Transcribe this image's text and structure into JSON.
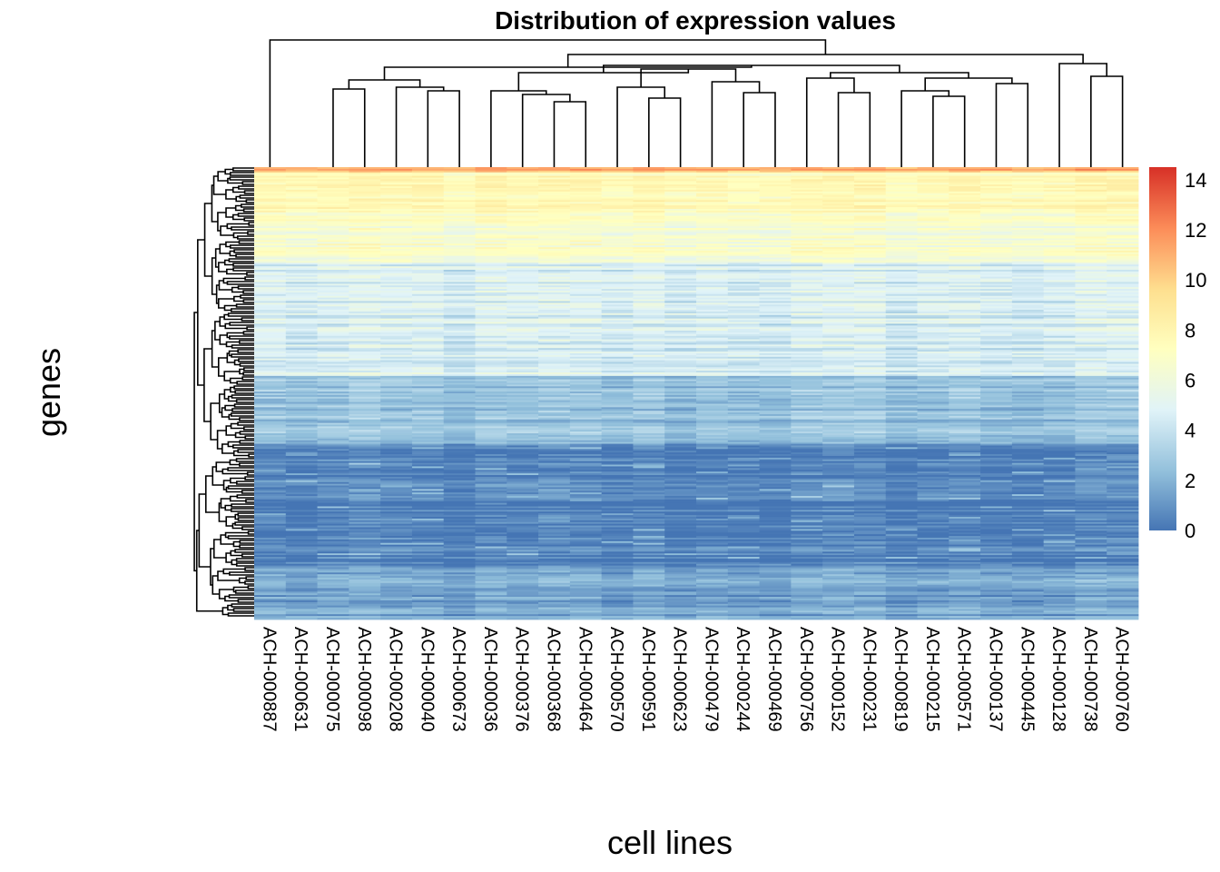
{
  "chart_data": {
    "type": "heatmap",
    "title": "Distribution of expression values",
    "xlabel": "cell lines",
    "ylabel": "genes",
    "columns": [
      "ACH-000887",
      "ACH-000631",
      "ACH-000075",
      "ACH-000098",
      "ACH-000208",
      "ACH-000040",
      "ACH-000673",
      "ACH-000036",
      "ACH-000376",
      "ACH-000368",
      "ACH-000464",
      "ACH-000570",
      "ACH-000591",
      "ACH-000623",
      "ACH-000479",
      "ACH-000244",
      "ACH-000469",
      "ACH-000756",
      "ACH-000152",
      "ACH-000231",
      "ACH-000819",
      "ACH-000215",
      "ACH-000571",
      "ACH-000137",
      "ACH-000445",
      "ACH-000128",
      "ACH-000738",
      "ACH-000760"
    ],
    "row_labels_shown": false,
    "color_scale": {
      "min": 0,
      "max": 14.5,
      "ticks": [
        0,
        2,
        4,
        6,
        8,
        10,
        12,
        14
      ],
      "colors": [
        "#4575b4",
        "#91bfdb",
        "#e0f3f8",
        "#ffffbf",
        "#fee090",
        "#fc8d59",
        "#d73027"
      ]
    },
    "row_blocks": [
      {
        "rows_fraction": [
          0.0,
          0.01
        ],
        "approx_value": 11
      },
      {
        "rows_fraction": [
          0.01,
          0.1
        ],
        "approx_value": 7.5
      },
      {
        "rows_fraction": [
          0.1,
          0.21
        ],
        "approx_value": 6.5
      },
      {
        "rows_fraction": [
          0.21,
          0.46
        ],
        "approx_value": 4.5
      },
      {
        "rows_fraction": [
          0.46,
          0.61
        ],
        "approx_value": 2.5
      },
      {
        "rows_fraction": [
          0.61,
          0.88
        ],
        "approx_value": 0.3
      },
      {
        "rows_fraction": [
          0.88,
          1.0
        ],
        "approx_value": 1.5
      }
    ],
    "legend": "right",
    "row_dendrogram": "left",
    "column_dendrogram": "top"
  }
}
